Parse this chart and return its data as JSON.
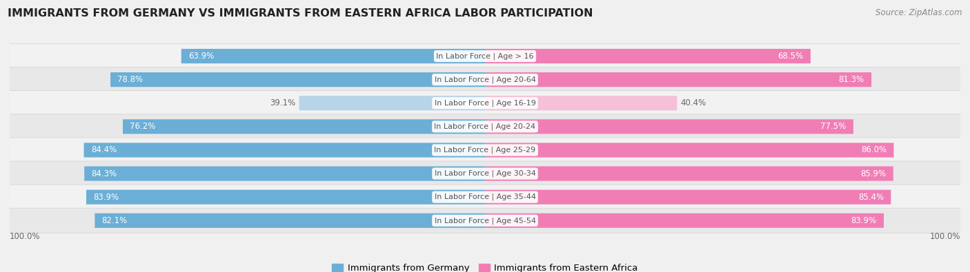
{
  "title": "IMMIGRANTS FROM GERMANY VS IMMIGRANTS FROM EASTERN AFRICA LABOR PARTICIPATION",
  "source": "Source: ZipAtlas.com",
  "categories": [
    "In Labor Force | Age > 16",
    "In Labor Force | Age 20-64",
    "In Labor Force | Age 16-19",
    "In Labor Force | Age 20-24",
    "In Labor Force | Age 25-29",
    "In Labor Force | Age 30-34",
    "In Labor Force | Age 35-44",
    "In Labor Force | Age 45-54"
  ],
  "germany_values": [
    63.9,
    78.8,
    39.1,
    76.2,
    84.4,
    84.3,
    83.9,
    82.1
  ],
  "eastern_africa_values": [
    68.5,
    81.3,
    40.4,
    77.5,
    86.0,
    85.9,
    85.4,
    83.9
  ],
  "germany_color": "#6baed6",
  "germany_color_light": "#b8d4e8",
  "eastern_africa_color": "#f07eb5",
  "eastern_africa_color_light": "#f5c0d8",
  "row_bg_odd": "#f2f2f2",
  "row_bg_even": "#e8e8e8",
  "chart_bg": "#f0f0f0",
  "white_label_color": "#ffffff",
  "dark_label_color": "#666666",
  "center_label_bg": "#ffffff",
  "center_label_color": "#555555",
  "legend_germany": "Immigrants from Germany",
  "legend_eastern_africa": "Immigrants from Eastern Africa",
  "max_val": 100.0,
  "title_fontsize": 11.5,
  "label_fontsize": 8.5,
  "cat_fontsize": 8.0,
  "source_fontsize": 8.5
}
